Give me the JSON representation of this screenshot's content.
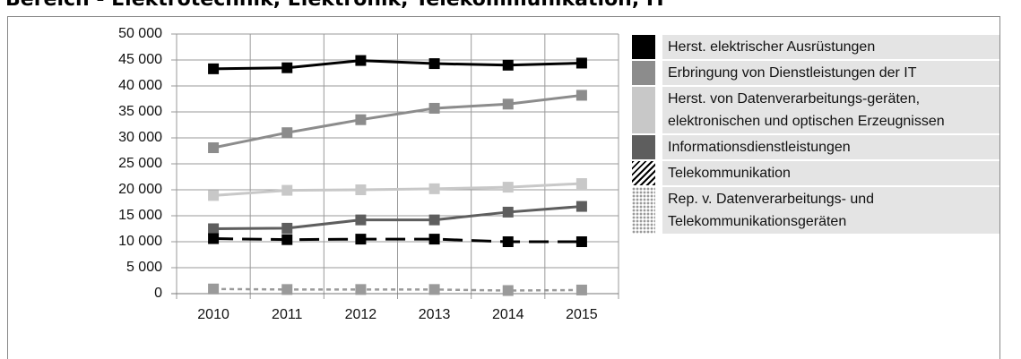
{
  "chart_data": {
    "type": "line",
    "title": "Bereich - Elektrotechnik, Elektronik, Telekommunikation, IT",
    "categories": [
      "2010",
      "2011",
      "2012",
      "2013",
      "2014",
      "2015"
    ],
    "ylim": [
      0,
      50000
    ],
    "yticks": [
      {
        "value": 0,
        "label": "0"
      },
      {
        "value": 5000,
        "label": "5 000"
      },
      {
        "value": 10000,
        "label": "10 000"
      },
      {
        "value": 15000,
        "label": "15 000"
      },
      {
        "value": 20000,
        "label": "20 000"
      },
      {
        "value": 25000,
        "label": "25 000"
      },
      {
        "value": 30000,
        "label": "30 000"
      },
      {
        "value": 35000,
        "label": "35 000"
      },
      {
        "value": 40000,
        "label": "40 000"
      },
      {
        "value": 45000,
        "label": "45 000"
      },
      {
        "value": 50000,
        "label": "50 000"
      }
    ],
    "grid": true,
    "legend": "right",
    "series": [
      {
        "name": "Herst. elektrischer Ausrüstungen",
        "color": "#000000",
        "dash": "solid",
        "values": [
          43300,
          43500,
          44900,
          44300,
          44000,
          44400
        ]
      },
      {
        "name": "Erbringung von Dienstleistungen der IT",
        "color": "#8c8c8c",
        "dash": "solid",
        "values": [
          28100,
          31000,
          33500,
          35700,
          36500,
          38200
        ]
      },
      {
        "name": "Herst. von Datenverarbeitungs-geräten, elektronischen und optischen Erzeugnissen",
        "color": "#c8c8c8",
        "dash": "solid",
        "values": [
          18900,
          19900,
          20000,
          20200,
          20500,
          21200
        ]
      },
      {
        "name": "Informationsdienstleistungen",
        "color": "#5e5e5e",
        "dash": "solid",
        "values": [
          12500,
          12600,
          14200,
          14200,
          15700,
          16800
        ]
      },
      {
        "name": "Telekommunikation",
        "color": "#000000",
        "dash": "dashed",
        "values": [
          10600,
          10400,
          10500,
          10500,
          10000,
          10000
        ]
      },
      {
        "name": "Rep. v. Datenverarbeitungs- und Telekommunikationsgeräten",
        "color": "#9a9a9a",
        "dash": "dotted",
        "values": [
          900,
          800,
          800,
          800,
          600,
          700
        ]
      }
    ]
  }
}
